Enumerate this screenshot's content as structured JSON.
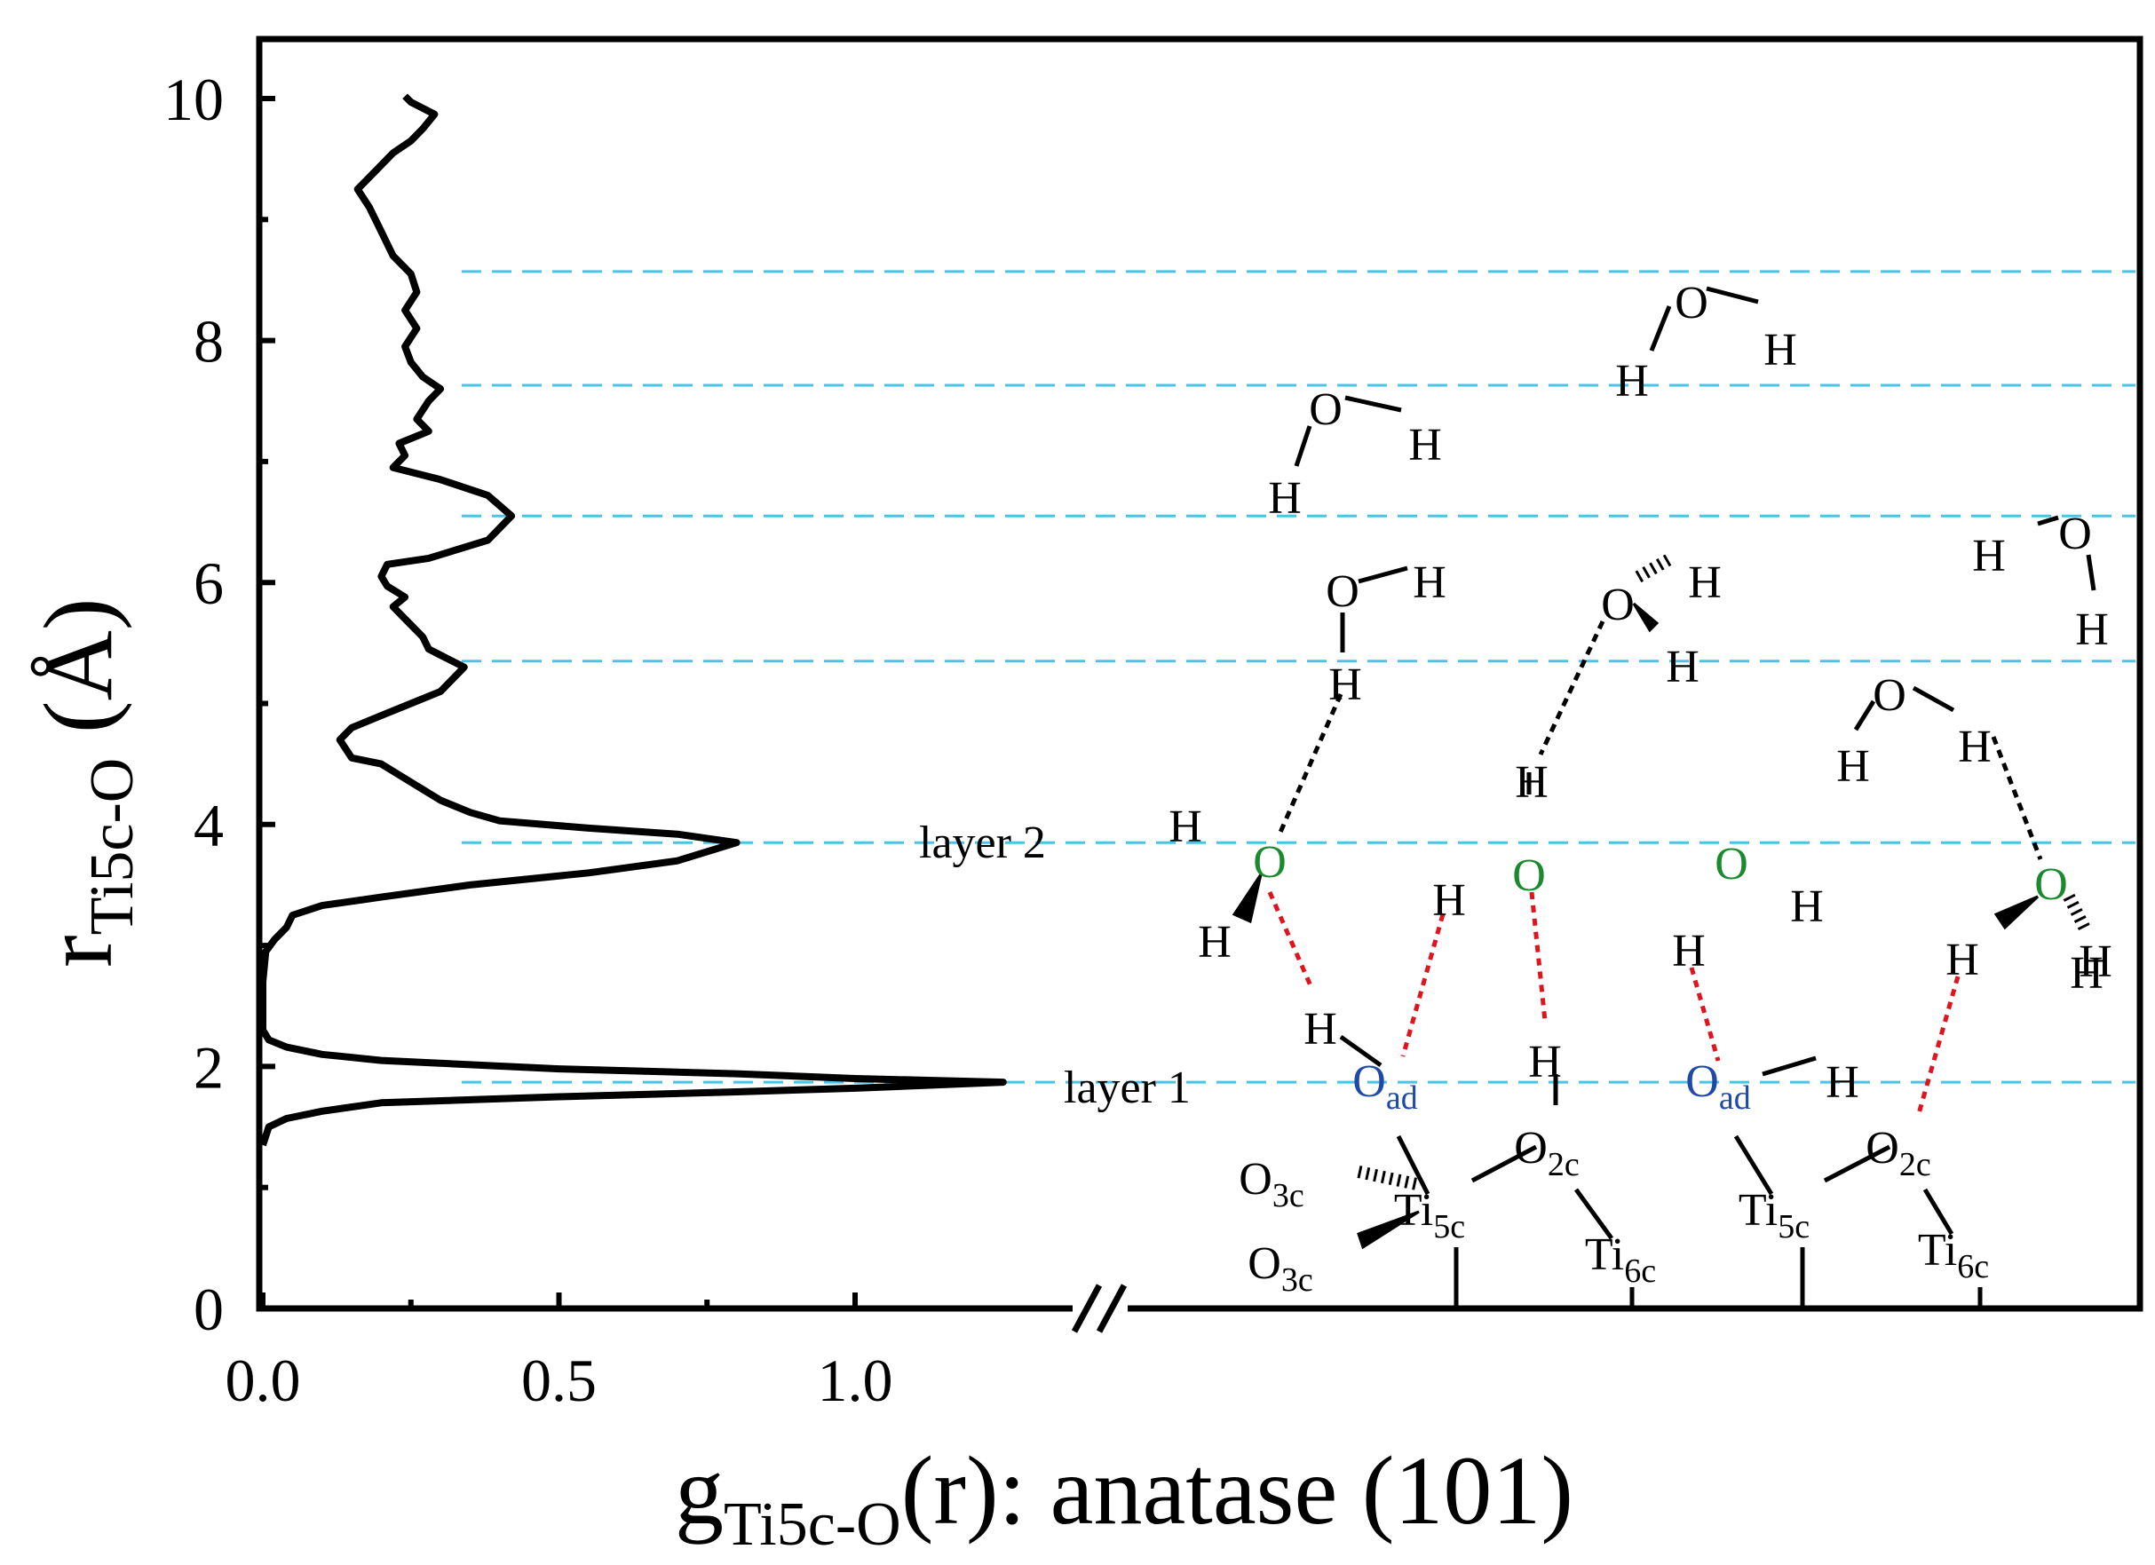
{
  "chart_data": {
    "type": "line",
    "xlabel_main": "g",
    "xlabel_sub": "Ti5c-O",
    "xlabel_rest": "(r):  anatase (101)",
    "ylabel_main": "r",
    "ylabel_sub": "Ti5c-O",
    "ylabel_unit": " (Å)",
    "xlim": [
      0,
      1.25
    ],
    "ylim": [
      0,
      10.5
    ],
    "x_ticks": [
      {
        "value": 0.0,
        "label": "0.0"
      },
      {
        "value": 0.5,
        "label": "0.5"
      },
      {
        "value": 1.0,
        "label": "1.0"
      }
    ],
    "y_ticks": [
      {
        "value": 0,
        "label": "0"
      },
      {
        "value": 2,
        "label": "2"
      },
      {
        "value": 4,
        "label": "4"
      },
      {
        "value": 6,
        "label": "6"
      },
      {
        "value": 8,
        "label": "8"
      },
      {
        "value": 10,
        "label": "10"
      }
    ],
    "axis_break": true,
    "series": [
      {
        "color": "#000000",
        "points": [
          [
            0.0,
            1.35
          ],
          [
            0.01,
            1.5
          ],
          [
            0.04,
            1.57
          ],
          [
            0.1,
            1.63
          ],
          [
            0.2,
            1.7
          ],
          [
            0.5,
            1.75
          ],
          [
            0.8,
            1.79
          ],
          [
            1.0,
            1.82
          ],
          [
            1.25,
            1.87
          ],
          [
            1.0,
            1.9
          ],
          [
            0.8,
            1.94
          ],
          [
            0.5,
            1.98
          ],
          [
            0.2,
            2.05
          ],
          [
            0.1,
            2.1
          ],
          [
            0.04,
            2.16
          ],
          [
            0.01,
            2.22
          ],
          [
            0.0,
            2.3
          ],
          [
            0.0,
            2.7
          ],
          [
            0.005,
            2.95
          ],
          [
            0.02,
            3.05
          ],
          [
            0.04,
            3.15
          ],
          [
            0.05,
            3.25
          ],
          [
            0.1,
            3.33
          ],
          [
            0.2,
            3.4
          ],
          [
            0.35,
            3.5
          ],
          [
            0.55,
            3.6
          ],
          [
            0.7,
            3.7
          ],
          [
            0.8,
            3.85
          ],
          [
            0.7,
            3.92
          ],
          [
            0.55,
            3.97
          ],
          [
            0.4,
            4.03
          ],
          [
            0.35,
            4.1
          ],
          [
            0.3,
            4.2
          ],
          [
            0.25,
            4.35
          ],
          [
            0.2,
            4.5
          ],
          [
            0.15,
            4.55
          ],
          [
            0.13,
            4.7
          ],
          [
            0.15,
            4.8
          ],
          [
            0.2,
            4.9
          ],
          [
            0.25,
            5.0
          ],
          [
            0.3,
            5.1
          ],
          [
            0.34,
            5.3
          ],
          [
            0.3,
            5.4
          ],
          [
            0.28,
            5.45
          ],
          [
            0.27,
            5.55
          ],
          [
            0.25,
            5.65
          ],
          [
            0.22,
            5.8
          ],
          [
            0.24,
            5.88
          ],
          [
            0.21,
            5.97
          ],
          [
            0.2,
            6.05
          ],
          [
            0.21,
            6.15
          ],
          [
            0.28,
            6.2
          ],
          [
            0.38,
            6.35
          ],
          [
            0.42,
            6.55
          ],
          [
            0.38,
            6.72
          ],
          [
            0.3,
            6.85
          ],
          [
            0.22,
            6.95
          ],
          [
            0.24,
            7.05
          ],
          [
            0.23,
            7.15
          ],
          [
            0.28,
            7.25
          ],
          [
            0.26,
            7.35
          ],
          [
            0.28,
            7.5
          ],
          [
            0.3,
            7.6
          ],
          [
            0.27,
            7.7
          ],
          [
            0.25,
            7.82
          ],
          [
            0.24,
            7.95
          ],
          [
            0.26,
            8.1
          ],
          [
            0.24,
            8.25
          ],
          [
            0.26,
            8.4
          ],
          [
            0.25,
            8.55
          ],
          [
            0.22,
            8.7
          ],
          [
            0.2,
            8.9
          ],
          [
            0.18,
            9.1
          ],
          [
            0.16,
            9.25
          ],
          [
            0.19,
            9.4
          ],
          [
            0.22,
            9.55
          ],
          [
            0.25,
            9.65
          ],
          [
            0.27,
            9.75
          ],
          [
            0.29,
            9.87
          ],
          [
            0.25,
            9.97
          ],
          [
            0.24,
            10.02
          ]
        ]
      }
    ],
    "dashed_levels": [
      1.87,
      3.85,
      5.35,
      6.55,
      7.63,
      8.57
    ],
    "dashed_color": "#4cc3e6",
    "annotations": [
      {
        "id": "layer-2-label",
        "text": "layer 2"
      },
      {
        "id": "layer-1-label",
        "text": "layer 1"
      }
    ]
  },
  "schematic": {
    "hbond_black_color": "#000000",
    "hbond_red_color": "#e0141e",
    "green_color": "#1a8a2e",
    "blue_color": "#1f4aa8",
    "atoms": [
      {
        "id": "w-top1-O",
        "text": "O",
        "color": "#000"
      },
      {
        "id": "w-top1-H1",
        "text": "H",
        "color": "#000"
      },
      {
        "id": "w-top1-H2",
        "text": "H",
        "color": "#000"
      },
      {
        "id": "w-upper-left-O",
        "text": "O",
        "color": "#000"
      },
      {
        "id": "w-upper-left-H1",
        "text": "H",
        "color": "#000"
      },
      {
        "id": "w-upper-left-H2",
        "text": "H",
        "color": "#000"
      },
      {
        "id": "w-right-top-O",
        "text": "O",
        "color": "#000"
      },
      {
        "id": "w-right-top-H1",
        "text": "H",
        "color": "#000"
      },
      {
        "id": "w-right-top-H2",
        "text": "H",
        "color": "#000"
      },
      {
        "id": "w-mid-left-O",
        "text": "O",
        "color": "#000"
      },
      {
        "id": "w-mid-left-H1",
        "text": "H",
        "color": "#000"
      },
      {
        "id": "w-mid-left-H2",
        "text": "H",
        "color": "#000"
      },
      {
        "id": "w-mid-center-O",
        "text": "O",
        "color": "#000"
      },
      {
        "id": "w-mid-center-H1",
        "text": "H",
        "color": "#000"
      },
      {
        "id": "w-mid-center-H2",
        "text": "H",
        "color": "#000"
      },
      {
        "id": "w-mid-right-O",
        "text": "O",
        "color": "#000"
      },
      {
        "id": "w-mid-right-H1",
        "text": "H",
        "color": "#000"
      },
      {
        "id": "w-mid-right-H2",
        "text": "H",
        "color": "#000"
      },
      {
        "id": "l2-a-O",
        "text": "O",
        "color": "green"
      },
      {
        "id": "l2-a-H1",
        "text": "H",
        "color": "#000"
      },
      {
        "id": "l2-a-H2",
        "text": "H",
        "color": "#000"
      },
      {
        "id": "l2-b-O",
        "text": "O",
        "color": "green"
      },
      {
        "id": "l2-b-H1",
        "text": "H",
        "color": "#000"
      },
      {
        "id": "l2-b-H2",
        "text": "H",
        "color": "#000"
      },
      {
        "id": "l2-c-O",
        "text": "O",
        "color": "green"
      },
      {
        "id": "l2-c-H1",
        "text": "H",
        "color": "#000"
      },
      {
        "id": "l2-c-H2",
        "text": "H",
        "color": "#000"
      },
      {
        "id": "l2-d-O",
        "text": "O",
        "color": "green"
      },
      {
        "id": "l2-d-H1",
        "text": "H",
        "color": "#000"
      },
      {
        "id": "l2-d-H2",
        "text": "H",
        "color": "#000"
      },
      {
        "id": "l1-a-H",
        "text": "H",
        "color": "#000"
      },
      {
        "id": "l1-b-H",
        "text": "H",
        "color": "#000"
      },
      {
        "id": "l1-c-H",
        "text": "H",
        "color": "#000"
      },
      {
        "id": "l1-d-H",
        "text": "H",
        "color": "#000"
      }
    ],
    "labels": [
      {
        "id": "oad-1",
        "main": "O",
        "sub": "ad",
        "color": "blue"
      },
      {
        "id": "oad-2",
        "main": "O",
        "sub": "ad",
        "color": "blue"
      },
      {
        "id": "o2c-1",
        "main": "O",
        "sub": "2c",
        "color": "#000"
      },
      {
        "id": "o2c-2",
        "main": "O",
        "sub": "2c",
        "color": "#000"
      },
      {
        "id": "o3c-1",
        "main": "O",
        "sub": "3c",
        "color": "#000"
      },
      {
        "id": "o3c-2",
        "main": "O",
        "sub": "3c",
        "color": "#000"
      },
      {
        "id": "ti5c-1",
        "main": "Ti",
        "sub": "5c",
        "color": "#000"
      },
      {
        "id": "ti5c-2",
        "main": "Ti",
        "sub": "5c",
        "color": "#000"
      },
      {
        "id": "ti6c-1",
        "main": "Ti",
        "sub": "6c",
        "color": "#000"
      },
      {
        "id": "ti6c-2",
        "main": "Ti",
        "sub": "6c",
        "color": "#000"
      }
    ]
  }
}
